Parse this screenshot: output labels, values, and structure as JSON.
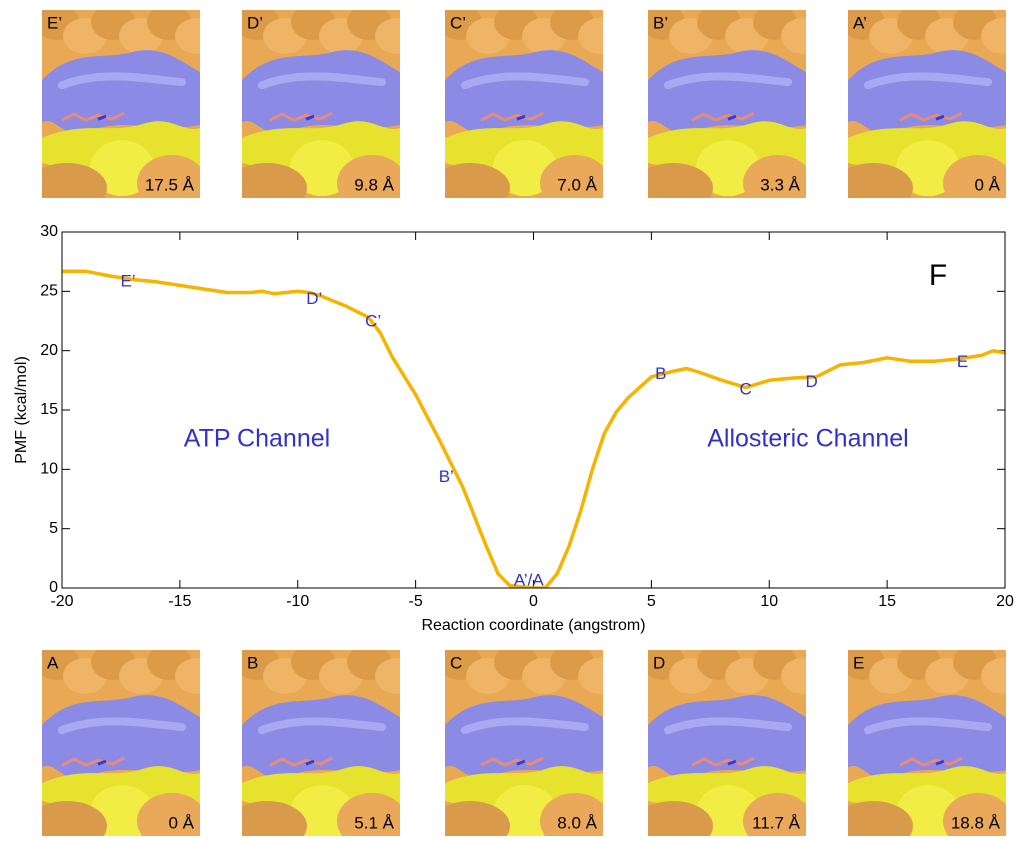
{
  "chart_data": {
    "type": "line",
    "panel_label": "F",
    "xlabel": "Reaction coordinate (angstrom)",
    "ylabel": "PMF (kcal/mol)",
    "xlim": [
      -20,
      20
    ],
    "ylim": [
      0,
      30
    ],
    "xticks": [
      -20,
      -15,
      -10,
      -5,
      0,
      5,
      10,
      15,
      20
    ],
    "yticks": [
      0,
      5,
      10,
      15,
      20,
      25,
      30
    ],
    "grid": false,
    "x": [
      -20,
      -19,
      -18,
      -17,
      -16,
      -15,
      -14,
      -13,
      -12,
      -11.5,
      -11,
      -10,
      -9.5,
      -9,
      -8,
      -7,
      -6.5,
      -6,
      -5,
      -4,
      -3.5,
      -3,
      -2.5,
      -2,
      -1.5,
      -1,
      0,
      0.5,
      1,
      1.5,
      2,
      2.5,
      3,
      3.5,
      4,
      5,
      6,
      6.5,
      7,
      8,
      9,
      10,
      11,
      12,
      13,
      14,
      15,
      16,
      17,
      18,
      19,
      19.5,
      20
    ],
    "series": [
      {
        "name": "PMF",
        "color": "#f5b400",
        "values": [
          26.7,
          26.7,
          26.3,
          26.0,
          25.8,
          25.5,
          25.2,
          24.9,
          24.9,
          25.0,
          24.8,
          25.0,
          24.9,
          24.6,
          23.8,
          22.8,
          21.5,
          19.5,
          16.3,
          12.5,
          10.5,
          8.5,
          6.0,
          3.5,
          1.2,
          0.2,
          0,
          0,
          1.2,
          3.5,
          6.5,
          10.0,
          13.0,
          14.8,
          16.0,
          17.8,
          18.3,
          18.5,
          18.2,
          17.5,
          16.9,
          17.5,
          17.7,
          17.8,
          18.8,
          19.0,
          19.4,
          19.1,
          19.1,
          19.3,
          19.6,
          20.0,
          19.8
        ]
      }
    ],
    "point_labels": [
      {
        "text": "E’",
        "x": -17.2,
        "y": 25.8
      },
      {
        "text": "D’",
        "x": -9.3,
        "y": 24.3
      },
      {
        "text": "C’",
        "x": -6.8,
        "y": 22.4
      },
      {
        "text": "B’",
        "x": -3.7,
        "y": 9.3
      },
      {
        "text": "A’/A",
        "x": -0.2,
        "y": 0.6
      },
      {
        "text": "B",
        "x": 5.4,
        "y": 18.0
      },
      {
        "text": "C",
        "x": 9.0,
        "y": 16.7
      },
      {
        "text": "D",
        "x": 11.8,
        "y": 17.3
      },
      {
        "text": "E",
        "x": 18.2,
        "y": 19.0
      }
    ],
    "channel_labels": [
      "ATP Channel",
      "Allosteric Channel"
    ]
  },
  "top_panels": [
    {
      "label": "E’",
      "distance": "17.5 Å"
    },
    {
      "label": "D’",
      "distance": "9.8 Å"
    },
    {
      "label": "C’",
      "distance": "7.0 Å"
    },
    {
      "label": "B’",
      "distance": "3.3 Å"
    },
    {
      "label": "A’",
      "distance": "0 Å"
    }
  ],
  "bottom_panels": [
    {
      "label": "A",
      "distance": "0 Å"
    },
    {
      "label": "B",
      "distance": "5.1 Å"
    },
    {
      "label": "C",
      "distance": "8.0 Å"
    },
    {
      "label": "D",
      "distance": "11.7 Å"
    },
    {
      "label": "E",
      "distance": "18.8 Å"
    }
  ]
}
